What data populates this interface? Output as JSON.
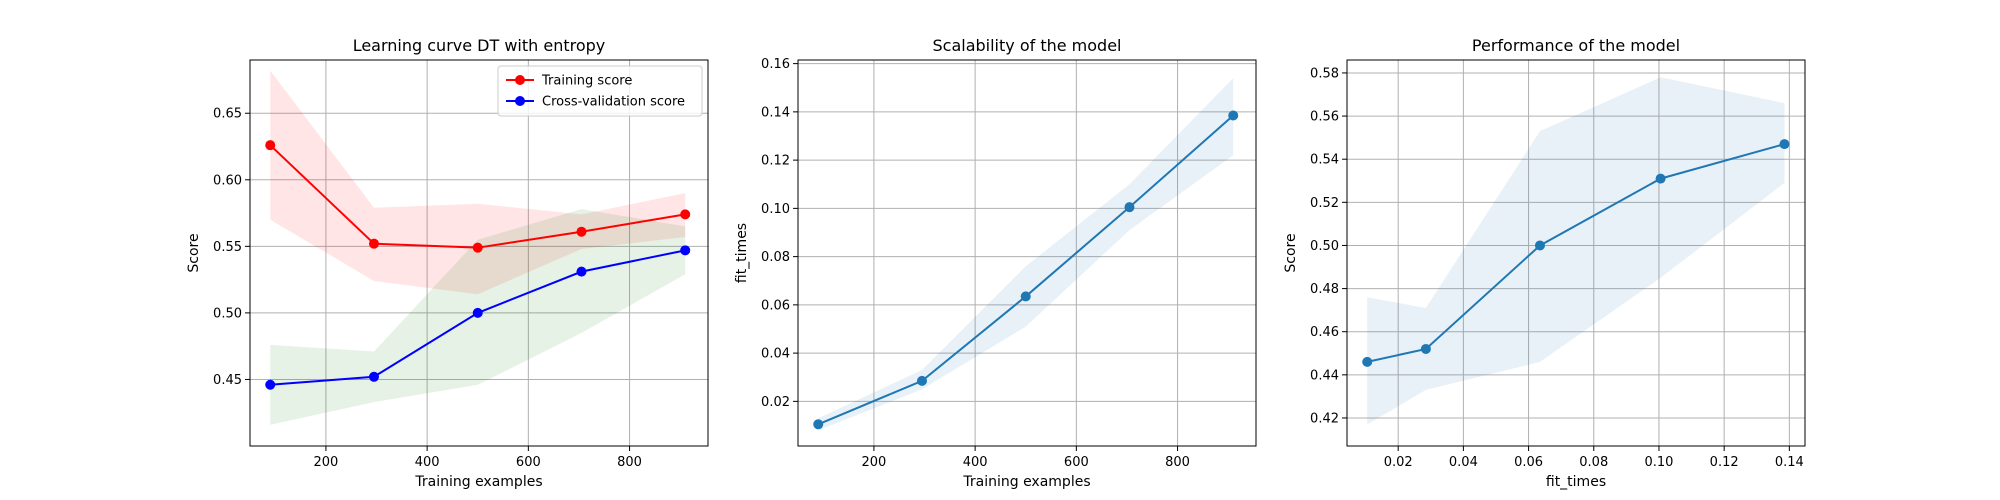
{
  "chart_data": [
    {
      "type": "line",
      "title": "Learning curve DT with entropy",
      "xlabel": "Training examples",
      "ylabel": "Score",
      "xlim": [
        50,
        955
      ],
      "ylim": [
        0.4,
        0.69
      ],
      "xticks": [
        200,
        400,
        600,
        800
      ],
      "xtick_labels": [
        "200",
        "400",
        "600",
        "800"
      ],
      "yticks": [
        0.45,
        0.5,
        0.55,
        0.6,
        0.65
      ],
      "ytick_labels": [
        "0.45",
        "0.50",
        "0.55",
        "0.60",
        "0.65"
      ],
      "grid": true,
      "legend_position": "top-right",
      "x": [
        90,
        295,
        500,
        705,
        910
      ],
      "series": [
        {
          "name": "Training score",
          "color": "#ff0000",
          "band_color": "#ff0000",
          "values": [
            0.626,
            0.552,
            0.549,
            0.561,
            0.574
          ],
          "upper": [
            0.682,
            0.579,
            0.582,
            0.574,
            0.59
          ],
          "lower": [
            0.57,
            0.524,
            0.514,
            0.548,
            0.557
          ]
        },
        {
          "name": "Cross-validation score",
          "color": "#0000ff",
          "band_color": "#008000",
          "values": [
            0.446,
            0.452,
            0.5,
            0.531,
            0.547
          ],
          "upper": [
            0.476,
            0.471,
            0.555,
            0.578,
            0.565
          ],
          "lower": [
            0.416,
            0.433,
            0.446,
            0.485,
            0.529
          ]
        }
      ]
    },
    {
      "type": "line",
      "title": "Scalability of the model",
      "xlabel": "Training examples",
      "ylabel": "fit_times",
      "xlim": [
        50,
        955
      ],
      "ylim": [
        0.0015,
        0.1615
      ],
      "xticks": [
        200,
        400,
        600,
        800
      ],
      "xtick_labels": [
        "200",
        "400",
        "600",
        "800"
      ],
      "yticks": [
        0.02,
        0.04,
        0.06,
        0.08,
        0.1,
        0.12,
        0.14,
        0.16
      ],
      "ytick_labels": [
        "0.02",
        "0.04",
        "0.06",
        "0.08",
        "0.10",
        "0.12",
        "0.14",
        "0.16"
      ],
      "grid": true,
      "x": [
        90,
        295,
        500,
        705,
        910
      ],
      "series": [
        {
          "color": "#1f77b4",
          "band_color": "#1f77b4",
          "values": [
            0.0105,
            0.0285,
            0.0635,
            0.1005,
            0.1385
          ],
          "upper": [
            0.013,
            0.033,
            0.076,
            0.11,
            0.154
          ],
          "lower": [
            0.008,
            0.025,
            0.051,
            0.091,
            0.122
          ]
        }
      ]
    },
    {
      "type": "line",
      "title": "Performance of the model",
      "xlabel": "fit_times",
      "ylabel": "Score",
      "xlim": [
        0.0043,
        0.1448
      ],
      "ylim": [
        0.407,
        0.586
      ],
      "xticks": [
        0.02,
        0.04,
        0.06,
        0.08,
        0.1,
        0.12,
        0.14
      ],
      "xtick_labels": [
        "0.02",
        "0.04",
        "0.06",
        "0.08",
        "0.10",
        "0.12",
        "0.14"
      ],
      "yticks": [
        0.42,
        0.44,
        0.46,
        0.48,
        0.5,
        0.52,
        0.54,
        0.56,
        0.58
      ],
      "ytick_labels": [
        "0.42",
        "0.44",
        "0.46",
        "0.48",
        "0.50",
        "0.52",
        "0.54",
        "0.56",
        "0.58"
      ],
      "grid": true,
      "x": [
        0.0105,
        0.0285,
        0.0635,
        0.1005,
        0.1385
      ],
      "series": [
        {
          "color": "#1f77b4",
          "band_color": "#1f77b4",
          "values": [
            0.446,
            0.452,
            0.5,
            0.531,
            0.547
          ],
          "upper": [
            0.476,
            0.471,
            0.553,
            0.578,
            0.566
          ],
          "lower": [
            0.417,
            0.433,
            0.446,
            0.485,
            0.529
          ]
        }
      ]
    }
  ]
}
